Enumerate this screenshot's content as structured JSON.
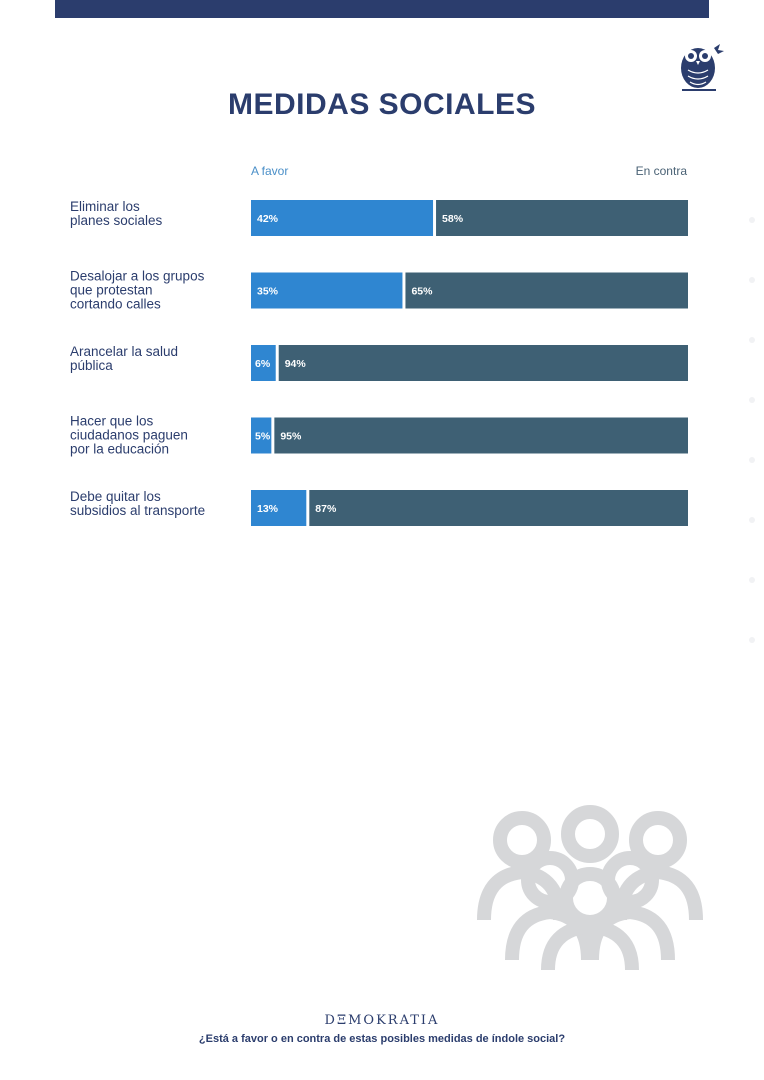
{
  "title": "MEDIDAS SOCIALES",
  "colors": {
    "navy": "#2b3d6d",
    "favor": "#2f86d1",
    "contra": "#3e6074",
    "crowd": "#d6d7d9"
  },
  "brand": "DΞMOKRATIA",
  "question": "¿Está a favor o en contra de estas posibles medidas de índole social?",
  "chart_data": {
    "type": "bar",
    "stacked": "horizontal-100",
    "title": "MEDIDAS SOCIALES",
    "legend": [
      "A favor",
      "En contra"
    ],
    "legend_placement": "top",
    "categories": [
      [
        "Eliminar los",
        "planes sociales"
      ],
      [
        "Desalojar a los grupos",
        "que protestan",
        "cortando calles"
      ],
      [
        "Arancelar la salud",
        "pública"
      ],
      [
        "Hacer que los",
        "ciudadanos paguen",
        "por la educación"
      ],
      [
        "Debe quitar los",
        "subsidios al transporte"
      ]
    ],
    "series": [
      {
        "name": "A favor",
        "values": [
          42,
          35,
          6,
          5,
          13
        ]
      },
      {
        "name": "En contra",
        "values": [
          58,
          65,
          94,
          95,
          87
        ]
      }
    ],
    "unit": "%",
    "xlim": [
      0,
      100
    ]
  }
}
